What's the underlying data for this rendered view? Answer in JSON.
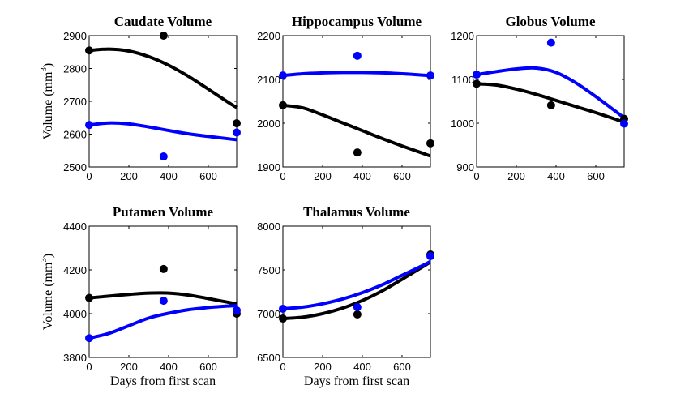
{
  "figure": {
    "colors": {
      "series_black": "#000000",
      "series_blue": "#0000ff",
      "axes": "#000000"
    }
  },
  "chart_data": [
    {
      "type": "scatter",
      "title": "Caudate Volume",
      "xlabel": "",
      "ylabel": "Volume (mm3)",
      "ylabel_base": "Volume (mm",
      "ylabel_sup": "3",
      "ylabel_end": ")",
      "xlim": [
        0,
        743
      ],
      "ylim": [
        2500,
        2900
      ],
      "xticks": [
        0,
        200,
        400,
        600
      ],
      "yticks": [
        2500,
        2600,
        2700,
        2800,
        2900
      ],
      "grid": false,
      "series": [
        {
          "name": "black",
          "color": "#000000",
          "points": {
            "x": [
              0,
              375,
              743
            ],
            "y": [
              2855,
              2900,
              2633
            ]
          },
          "fit": {
            "x": [
              0,
              100,
              200,
              300,
              400,
              500,
              600,
              700,
              743
            ],
            "y": [
              2855,
              2859,
              2853,
              2836,
              2810,
              2776,
              2737,
              2697,
              2681
            ]
          }
        },
        {
          "name": "blue",
          "color": "#0000ff",
          "points": {
            "x": [
              0,
              375,
              743
            ],
            "y": [
              2628,
              2532,
              2605
            ]
          },
          "fit": {
            "x": [
              0,
              100,
              200,
              300,
              400,
              500,
              600,
              700,
              743
            ],
            "y": [
              2628,
              2634,
              2631,
              2622,
              2611,
              2601,
              2593,
              2586,
              2583
            ]
          }
        }
      ]
    },
    {
      "type": "scatter",
      "title": "Hippocampus Volume",
      "xlabel": "",
      "ylabel": "",
      "xlim": [
        0,
        743
      ],
      "ylim": [
        1900,
        2200
      ],
      "xticks": [
        0,
        200,
        400,
        600
      ],
      "yticks": [
        1900,
        2000,
        2100,
        2200
      ],
      "grid": false,
      "series": [
        {
          "name": "black",
          "color": "#000000",
          "points": {
            "x": [
              0,
              375,
              743
            ],
            "y": [
              2041,
              1933,
              1954
            ]
          },
          "fit": {
            "x": [
              0,
              100,
              200,
              300,
              400,
              500,
              600,
              700,
              743
            ],
            "y": [
              2041,
              2035,
              2019,
              2001,
              1983,
              1965,
              1948,
              1932,
              1925
            ]
          }
        },
        {
          "name": "blue",
          "color": "#0000ff",
          "points": {
            "x": [
              0,
              375,
              743
            ],
            "y": [
              2109,
              2154,
              2109
            ]
          },
          "fit": {
            "x": [
              0,
              100,
              200,
              300,
              400,
              500,
              600,
              700,
              743
            ],
            "y": [
              2109,
              2113,
              2115,
              2116,
              2116,
              2115,
              2113,
              2110,
              2109
            ]
          }
        }
      ]
    },
    {
      "type": "scatter",
      "title": "Globus Volume",
      "xlabel": "",
      "ylabel": "",
      "xlim": [
        0,
        743
      ],
      "ylim": [
        900,
        1200
      ],
      "xticks": [
        0,
        200,
        400,
        600
      ],
      "yticks": [
        900,
        1000,
        1100,
        1200
      ],
      "grid": false,
      "series": [
        {
          "name": "black",
          "color": "#000000",
          "points": {
            "x": [
              0,
              375,
              743
            ],
            "y": [
              1090,
              1041,
              1010
            ]
          },
          "fit": {
            "x": [
              0,
              100,
              200,
              300,
              400,
              500,
              600,
              700,
              743
            ],
            "y": [
              1090,
              1087,
              1078,
              1066,
              1052,
              1038,
              1024,
              1009,
              1002
            ]
          }
        },
        {
          "name": "blue",
          "color": "#0000ff",
          "points": {
            "x": [
              0,
              375,
              743
            ],
            "y": [
              1111,
              1184,
              999
            ]
          },
          "fit": {
            "x": [
              0,
              100,
              200,
              300,
              400,
              500,
              600,
              700,
              743
            ],
            "y": [
              1111,
              1118,
              1124,
              1126,
              1116,
              1092,
              1061,
              1027,
              1012
            ]
          }
        }
      ]
    },
    {
      "type": "scatter",
      "title": "Putamen Volume",
      "xlabel": "Days from first scan",
      "ylabel": "Volume (mm3)",
      "ylabel_base": "Volume (mm",
      "ylabel_sup": "3",
      "ylabel_end": ")",
      "xlim": [
        0,
        743
      ],
      "ylim": [
        3800,
        4400
      ],
      "xticks": [
        0,
        200,
        400,
        600
      ],
      "yticks": [
        3800,
        4000,
        4200,
        4400
      ],
      "grid": false,
      "series": [
        {
          "name": "black",
          "color": "#000000",
          "points": {
            "x": [
              0,
              375,
              743
            ],
            "y": [
              4072,
              4204,
              4000
            ]
          },
          "fit": {
            "x": [
              0,
              100,
              200,
              300,
              400,
              500,
              600,
              700,
              743
            ],
            "y": [
              4072,
              4080,
              4088,
              4094,
              4094,
              4085,
              4069,
              4052,
              4044
            ]
          }
        },
        {
          "name": "blue",
          "color": "#0000ff",
          "points": {
            "x": [
              0,
              375,
              743
            ],
            "y": [
              3888,
              4059,
              4015
            ]
          },
          "fit": {
            "x": [
              0,
              100,
              200,
              300,
              400,
              500,
              600,
              700,
              743
            ],
            "y": [
              3888,
              3910,
              3945,
              3980,
              4002,
              4018,
              4028,
              4035,
              4037
            ]
          }
        }
      ]
    },
    {
      "type": "scatter",
      "title": "Thalamus Volume",
      "xlabel": "Days from first scan",
      "ylabel": "",
      "xlim": [
        0,
        743
      ],
      "ylim": [
        6500,
        8000
      ],
      "xticks": [
        0,
        200,
        400,
        600
      ],
      "yticks": [
        6500,
        7000,
        7500,
        8000
      ],
      "grid": false,
      "series": [
        {
          "name": "black",
          "color": "#000000",
          "points": {
            "x": [
              0,
              375,
              743
            ],
            "y": [
              6944,
              6991,
              7676
            ]
          },
          "fit": {
            "x": [
              0,
              100,
              200,
              300,
              400,
              500,
              600,
              700,
              743
            ],
            "y": [
              6944,
              6960,
              7000,
              7063,
              7150,
              7260,
              7393,
              7530,
              7590
            ]
          }
        },
        {
          "name": "blue",
          "color": "#0000ff",
          "points": {
            "x": [
              0,
              375,
              743
            ],
            "y": [
              7056,
              7074,
              7657
            ]
          },
          "fit": {
            "x": [
              0,
              100,
              200,
              300,
              400,
              500,
              600,
              700,
              743
            ],
            "y": [
              7056,
              7075,
              7113,
              7168,
              7240,
              7330,
              7438,
              7545,
              7595
            ]
          }
        }
      ]
    }
  ]
}
